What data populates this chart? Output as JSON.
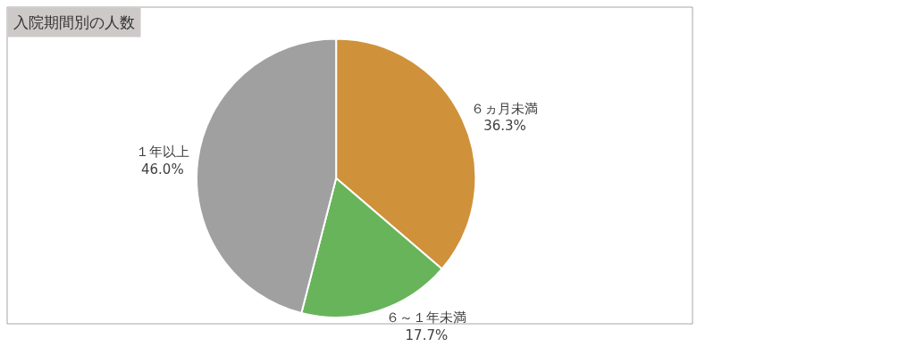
{
  "chart_data": {
    "type": "pie",
    "title": "入院期間別の人数",
    "categories": [
      "６ヵ月未満",
      "６～１年未満",
      "１年以上"
    ],
    "values": [
      36.3,
      17.7,
      46.0
    ],
    "value_labels": [
      "36.3%",
      "17.7%",
      "46.0%"
    ],
    "colors": [
      "#cf913a",
      "#68b45a",
      "#a0a0a0"
    ]
  }
}
